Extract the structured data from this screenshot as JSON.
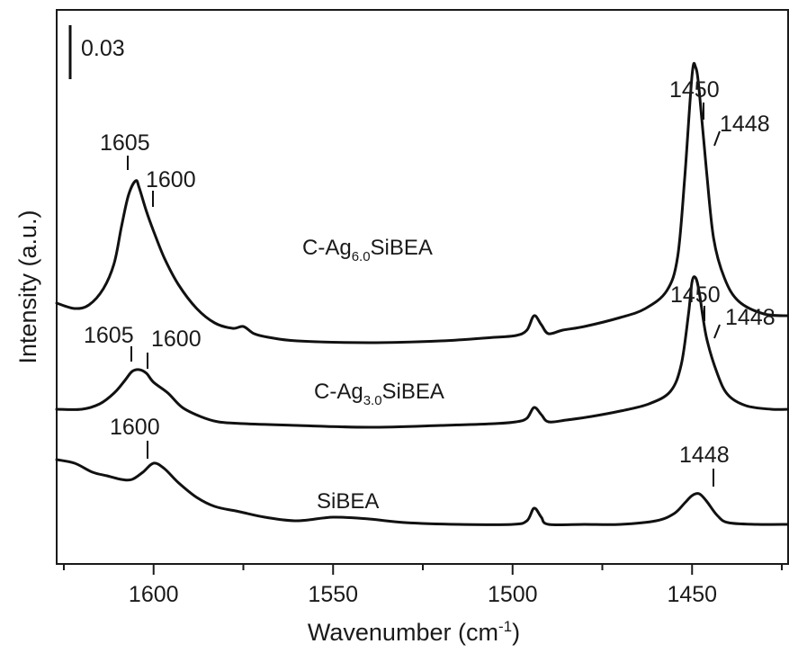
{
  "chart_data": {
    "type": "line",
    "xlabel": "Wavenumber (cm",
    "xlabel_sup": "-1",
    "xlabel_end": ")",
    "ylabel": "Intensity (a.u.)",
    "xlim": [
      1627,
      1423
    ],
    "xlim_note": "reversed",
    "x_ticks": [
      1600,
      1550,
      1500,
      1450
    ],
    "scale_bar": {
      "label": "0.03",
      "value": 0.03
    },
    "series": [
      {
        "label_main": "C-Ag",
        "label_sub": "6.0",
        "label_tail": "SiBEA",
        "points": [
          [
            1627,
            0.144
          ],
          [
            1622,
            0.141
          ],
          [
            1618,
            0.143
          ],
          [
            1614,
            0.152
          ],
          [
            1611,
            0.166
          ],
          [
            1609,
            0.186
          ],
          [
            1607,
            0.204
          ],
          [
            1605,
            0.212
          ],
          [
            1604,
            0.208
          ],
          [
            1602,
            0.195
          ],
          [
            1600,
            0.184
          ],
          [
            1597,
            0.169
          ],
          [
            1593,
            0.154
          ],
          [
            1588,
            0.141
          ],
          [
            1583,
            0.133
          ],
          [
            1578,
            0.13
          ],
          [
            1575,
            0.131
          ],
          [
            1572,
            0.127
          ],
          [
            1568,
            0.125
          ],
          [
            1560,
            0.123
          ],
          [
            1540,
            0.122
          ],
          [
            1520,
            0.123
          ],
          [
            1505,
            0.125
          ],
          [
            1499,
            0.126
          ],
          [
            1496,
            0.129
          ],
          [
            1494,
            0.137
          ],
          [
            1492,
            0.132
          ],
          [
            1490,
            0.127
          ],
          [
            1486,
            0.129
          ],
          [
            1480,
            0.131
          ],
          [
            1470,
            0.136
          ],
          [
            1463,
            0.141
          ],
          [
            1457,
            0.151
          ],
          [
            1454,
            0.17
          ],
          [
            1452,
            0.215
          ],
          [
            1450,
            0.271
          ],
          [
            1449,
            0.275
          ],
          [
            1448,
            0.262
          ],
          [
            1446,
            0.218
          ],
          [
            1444,
            0.18
          ],
          [
            1441,
            0.158
          ],
          [
            1437,
            0.145
          ],
          [
            1430,
            0.138
          ],
          [
            1423,
            0.137
          ]
        ],
        "peak_labels": [
          {
            "text": "1605",
            "x": 1605,
            "y": 0.212
          },
          {
            "text": "1600",
            "x": 1600,
            "y": 0.184
          },
          {
            "text": "1450",
            "x": 1450,
            "y": 0.275
          },
          {
            "text": "1448",
            "x": 1448,
            "y": 0.262
          }
        ]
      },
      {
        "label_main": "C-Ag",
        "label_sub": "3.0",
        "label_tail": "SiBEA",
        "points": [
          [
            1627,
            0.085
          ],
          [
            1620,
            0.085
          ],
          [
            1615,
            0.088
          ],
          [
            1611,
            0.094
          ],
          [
            1608,
            0.101
          ],
          [
            1606,
            0.106
          ],
          [
            1604,
            0.107
          ],
          [
            1602,
            0.105
          ],
          [
            1600,
            0.1
          ],
          [
            1596,
            0.094
          ],
          [
            1592,
            0.086
          ],
          [
            1587,
            0.081
          ],
          [
            1582,
            0.078
          ],
          [
            1575,
            0.077
          ],
          [
            1560,
            0.076
          ],
          [
            1540,
            0.075
          ],
          [
            1520,
            0.076
          ],
          [
            1505,
            0.077
          ],
          [
            1499,
            0.078
          ],
          [
            1496,
            0.08
          ],
          [
            1494,
            0.086
          ],
          [
            1492,
            0.082
          ],
          [
            1490,
            0.078
          ],
          [
            1485,
            0.079
          ],
          [
            1478,
            0.081
          ],
          [
            1470,
            0.084
          ],
          [
            1462,
            0.088
          ],
          [
            1456,
            0.095
          ],
          [
            1453,
            0.11
          ],
          [
            1451,
            0.138
          ],
          [
            1450,
            0.156
          ],
          [
            1449,
            0.158
          ],
          [
            1448,
            0.15
          ],
          [
            1446,
            0.125
          ],
          [
            1443,
            0.105
          ],
          [
            1440,
            0.093
          ],
          [
            1435,
            0.087
          ],
          [
            1428,
            0.085
          ],
          [
            1423,
            0.085
          ]
        ],
        "peak_labels": [
          {
            "text": "1605",
            "x": 1605,
            "y": 0.107
          },
          {
            "text": "1600",
            "x": 1600,
            "y": 0.1
          },
          {
            "text": "1450",
            "x": 1450,
            "y": 0.158
          },
          {
            "text": "1448",
            "x": 1448,
            "y": 0.15
          }
        ]
      },
      {
        "label_main": "SiBEA",
        "label_sub": "",
        "label_tail": "",
        "points": [
          [
            1627,
            0.057
          ],
          [
            1622,
            0.055
          ],
          [
            1617,
            0.05
          ],
          [
            1613,
            0.048
          ],
          [
            1609,
            0.046
          ],
          [
            1606,
            0.046
          ],
          [
            1603,
            0.05
          ],
          [
            1600,
            0.055
          ],
          [
            1597,
            0.052
          ],
          [
            1593,
            0.044
          ],
          [
            1588,
            0.036
          ],
          [
            1583,
            0.031
          ],
          [
            1576,
            0.028
          ],
          [
            1569,
            0.025
          ],
          [
            1560,
            0.023
          ],
          [
            1550,
            0.025
          ],
          [
            1540,
            0.024
          ],
          [
            1530,
            0.022
          ],
          [
            1515,
            0.021
          ],
          [
            1500,
            0.021
          ],
          [
            1496,
            0.023
          ],
          [
            1494,
            0.03
          ],
          [
            1492,
            0.025
          ],
          [
            1490,
            0.021
          ],
          [
            1480,
            0.021
          ],
          [
            1470,
            0.021
          ],
          [
            1460,
            0.023
          ],
          [
            1455,
            0.027
          ],
          [
            1452,
            0.033
          ],
          [
            1450,
            0.037
          ],
          [
            1448,
            0.038
          ],
          [
            1446,
            0.034
          ],
          [
            1443,
            0.026
          ],
          [
            1440,
            0.022
          ],
          [
            1432,
            0.021
          ],
          [
            1423,
            0.021
          ]
        ],
        "peak_labels": [
          {
            "text": "1600",
            "x": 1600,
            "y": 0.055
          },
          {
            "text": "1448",
            "x": 1448,
            "y": 0.038
          }
        ]
      }
    ]
  }
}
